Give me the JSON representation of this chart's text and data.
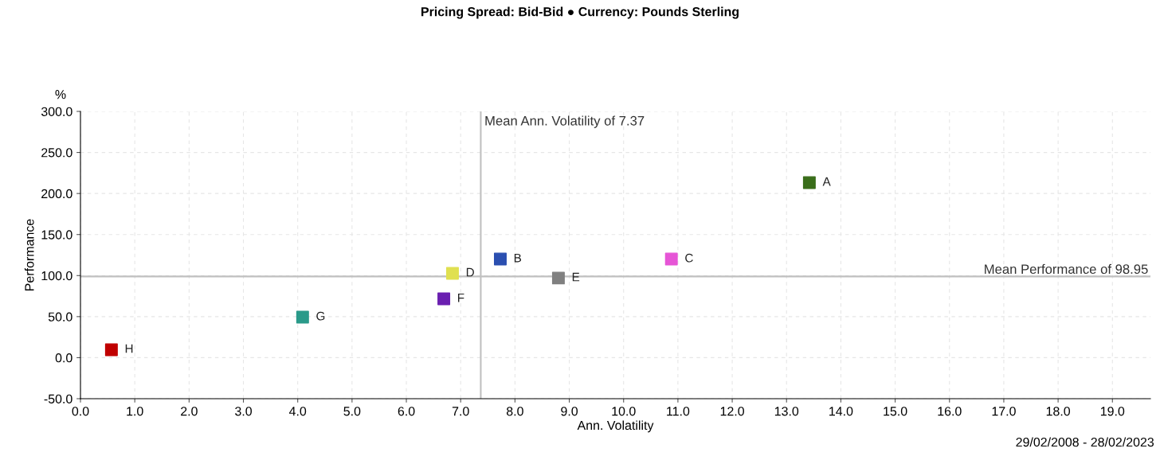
{
  "chart_data": {
    "type": "scatter",
    "title": "Pricing Spread: Bid-Bid ● Currency: Pounds Sterling",
    "xlabel": "Ann. Volatility",
    "ylabel": "Performance",
    "annotations": [
      "%",
      "29/02/2008 - 28/02/2023"
    ],
    "series": [
      {
        "name": "A",
        "color": "#3a6e1a",
        "x": [
          13.42
        ],
        "values": [
          213.3
        ]
      },
      {
        "name": "B",
        "color": "#2b4fb0",
        "x": [
          7.73
        ],
        "values": [
          120.2
        ]
      },
      {
        "name": "C",
        "color": "#e655d6",
        "x": [
          10.88
        ],
        "values": [
          120.2
        ]
      },
      {
        "name": "D",
        "color": "#e0e050",
        "x": [
          6.85
        ],
        "values": [
          102.8
        ]
      },
      {
        "name": "E",
        "color": "#808080",
        "x": [
          8.8
        ],
        "values": [
          97.0
        ]
      },
      {
        "name": "F",
        "color": "#6a1fb0",
        "x": [
          6.69
        ],
        "values": [
          71.7
        ]
      },
      {
        "name": "G",
        "color": "#2a9a8a",
        "x": [
          4.09
        ],
        "values": [
          49.4
        ]
      },
      {
        "name": "H",
        "color": "#c00000",
        "x": [
          0.57
        ],
        "values": [
          9.7
        ]
      }
    ],
    "xlim": [
      0,
      19.7
    ],
    "xticks": [
      {
        "value": 0,
        "label": "0.0"
      },
      {
        "value": 1,
        "label": "1.0"
      },
      {
        "value": 2,
        "label": "2.0"
      },
      {
        "value": 3,
        "label": "3.0"
      },
      {
        "value": 4,
        "label": "4.0"
      },
      {
        "value": 5,
        "label": "5.0"
      },
      {
        "value": 6,
        "label": "6.0"
      },
      {
        "value": 7,
        "label": "7.0"
      },
      {
        "value": 8,
        "label": "8.0"
      },
      {
        "value": 9,
        "label": "9.0"
      },
      {
        "value": 10,
        "label": "10.0"
      },
      {
        "value": 11,
        "label": "11.0"
      },
      {
        "value": 12,
        "label": "12.0"
      },
      {
        "value": 13,
        "label": "13.0"
      },
      {
        "value": 14,
        "label": "14.0"
      },
      {
        "value": 15,
        "label": "15.0"
      },
      {
        "value": 16,
        "label": "16.0"
      },
      {
        "value": 17,
        "label": "17.0"
      },
      {
        "value": 18,
        "label": "18.0"
      },
      {
        "value": 19,
        "label": "19.0"
      }
    ],
    "ylim": [
      -50,
      300
    ],
    "yticks": [
      {
        "value": -50,
        "label": "-50.0"
      },
      {
        "value": 0,
        "label": "0.0"
      },
      {
        "value": 50,
        "label": "50.0"
      },
      {
        "value": 100,
        "label": "100.0"
      },
      {
        "value": 150,
        "label": "150.0"
      },
      {
        "value": 200,
        "label": "200.0"
      },
      {
        "value": 250,
        "label": "250.0"
      },
      {
        "value": 300,
        "label": "300.0"
      }
    ],
    "ref_lines": [
      {
        "axis": "x",
        "value": 7.37,
        "label": "Mean Ann. Volatility of 7.37",
        "color": "#c0c0c0"
      },
      {
        "axis": "y",
        "value": 98.95,
        "label": "Mean Performance of 98.95",
        "color": "#c0c0c0"
      }
    ],
    "grid": true,
    "marker": "square",
    "legend": false
  }
}
